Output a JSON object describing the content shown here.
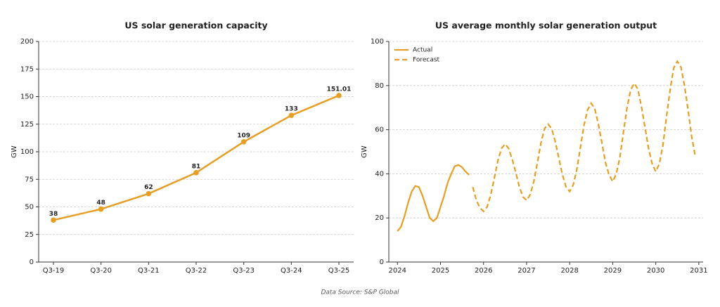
{
  "chart_data": [
    {
      "type": "line",
      "title": "US solar generation capacity",
      "ylabel": "GW",
      "categories": [
        "Q3-19",
        "Q3-20",
        "Q3-21",
        "Q3-22",
        "Q3-23",
        "Q3-24",
        "Q3-25"
      ],
      "values": [
        38,
        48,
        62,
        81,
        109,
        133,
        151.01
      ],
      "color": "#e69f24",
      "markers": true,
      "show_value_labels": true,
      "ylim": [
        0,
        200
      ],
      "yticks": [
        0,
        25,
        50,
        75,
        100,
        125,
        150,
        175,
        200
      ],
      "grid": true
    },
    {
      "type": "line",
      "title": "US average monthly solar generation output",
      "ylabel": "GW",
      "xlim": [
        2023.8,
        2031.1
      ],
      "xticks": [
        2024,
        2025,
        2026,
        2027,
        2028,
        2029,
        2030,
        2031
      ],
      "ylim": [
        0,
        100
      ],
      "yticks": [
        0,
        20,
        40,
        60,
        80,
        100
      ],
      "grid": true,
      "legend": "upper left",
      "series": [
        {
          "name": "Actual",
          "color": "#e69f24",
          "linestyle": "solid",
          "x": [
            2024,
            2024.083,
            2024.167,
            2024.25,
            2024.333,
            2024.417,
            2024.5,
            2024.583,
            2024.667,
            2024.75,
            2024.833,
            2024.917,
            2025,
            2025.083,
            2025.167,
            2025.25,
            2025.333,
            2025.417,
            2025.5,
            2025.583,
            2025.667
          ],
          "values": [
            14,
            16,
            21,
            27,
            32,
            34.5,
            34,
            30,
            25,
            20,
            18.5,
            20,
            25,
            30,
            36,
            40,
            43.5,
            44,
            43,
            41,
            39.5
          ]
        },
        {
          "name": "Forecast",
          "color": "#e69f24",
          "linestyle": "dashed",
          "x": [
            2025.75,
            2025.833,
            2025.917,
            2026,
            2026.083,
            2026.167,
            2026.25,
            2026.333,
            2026.417,
            2026.5,
            2026.583,
            2026.667,
            2026.75,
            2026.833,
            2026.917,
            2027,
            2027.083,
            2027.167,
            2027.25,
            2027.333,
            2027.417,
            2027.5,
            2027.583,
            2027.667,
            2027.75,
            2027.833,
            2027.917,
            2028,
            2028.083,
            2028.167,
            2028.25,
            2028.333,
            2028.417,
            2028.5,
            2028.583,
            2028.667,
            2028.75,
            2028.833,
            2028.917,
            2029,
            2029.083,
            2029.167,
            2029.25,
            2029.333,
            2029.417,
            2029.5,
            2029.583,
            2029.667,
            2029.75,
            2029.833,
            2029.917,
            2030,
            2030.083,
            2030.167,
            2030.25,
            2030.333,
            2030.417,
            2030.5,
            2030.583,
            2030.667,
            2030.75,
            2030.833,
            2030.917
          ],
          "values": [
            34,
            28,
            24.5,
            23,
            25,
            30.5,
            38,
            46,
            51.5,
            53.5,
            51.5,
            46.5,
            40.5,
            34,
            29.5,
            28,
            30.5,
            36.5,
            45,
            54,
            60.5,
            62.5,
            60.5,
            54.5,
            47,
            39.5,
            34,
            32,
            35,
            42,
            52,
            62,
            69,
            72,
            69.5,
            62.5,
            54,
            45,
            39.5,
            36.5,
            40,
            47.5,
            59,
            70,
            78,
            81,
            78.5,
            70.5,
            61,
            51.5,
            44.5,
            41,
            44.5,
            53,
            66,
            78,
            88,
            91,
            88.5,
            80,
            69,
            57,
            48
          ]
        }
      ]
    }
  ],
  "footer": "Data Source: S&P Global"
}
